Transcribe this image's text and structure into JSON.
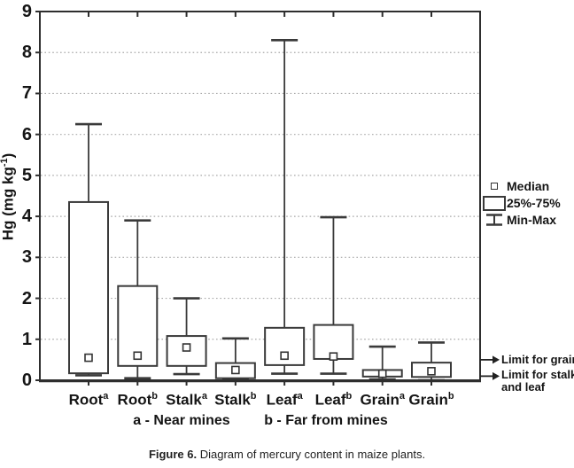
{
  "figure": {
    "caption_prefix": "Figure 6.",
    "caption_text": " Diagram of mercury content in maize plants."
  },
  "chart_data": {
    "type": "box",
    "title": "",
    "xlabel": "",
    "ylabel": "Hg (mg kg-1)",
    "ylabel_parts": {
      "main": "Hg (mg kg",
      "sup": "-1",
      "close": ")"
    },
    "ylim": [
      0,
      9
    ],
    "yticks": [
      0,
      1,
      2,
      3,
      4,
      5,
      6,
      7,
      8,
      9
    ],
    "gridlines": [
      1,
      2,
      3,
      4,
      5,
      6,
      7,
      8
    ],
    "grid_style": "dotted-horizontal",
    "legend_position": "right-outside",
    "categories": [
      "Root a",
      "Root b",
      "Stalk a",
      "Stalk b",
      "Leaf a",
      "Leaf b",
      "Grain a",
      "Grain b"
    ],
    "series": [
      {
        "name": "Root",
        "sup": "a",
        "min": 0.12,
        "q1": 0.17,
        "median": 0.55,
        "q3": 4.35,
        "max": 6.25
      },
      {
        "name": "Root",
        "sup": "b",
        "min": 0.05,
        "q1": 0.35,
        "median": 0.6,
        "q3": 2.3,
        "max": 3.9
      },
      {
        "name": "Stalk",
        "sup": "a",
        "min": 0.15,
        "q1": 0.35,
        "median": 0.8,
        "q3": 1.08,
        "max": 2.0
      },
      {
        "name": "Stalk",
        "sup": "b",
        "min": 0.02,
        "q1": 0.05,
        "median": 0.25,
        "q3": 0.42,
        "max": 1.02
      },
      {
        "name": "Leaf",
        "sup": "a",
        "min": 0.16,
        "q1": 0.37,
        "median": 0.6,
        "q3": 1.28,
        "max": 8.3
      },
      {
        "name": "Leaf",
        "sup": "b",
        "min": 0.16,
        "q1": 0.52,
        "median": 0.58,
        "q3": 1.35,
        "max": 3.98
      },
      {
        "name": "Grain",
        "sup": "a",
        "min": 0.02,
        "q1": 0.09,
        "median": 0.16,
        "q3": 0.25,
        "max": 0.82
      },
      {
        "name": "Grain",
        "sup": "b",
        "min": 0.0,
        "q1": 0.08,
        "median": 0.22,
        "q3": 0.43,
        "max": 0.92
      }
    ],
    "group_notes": [
      "a - Near mines",
      "b - Far from mines"
    ],
    "legend": [
      {
        "glyph": "square-marker",
        "label": "Median"
      },
      {
        "glyph": "box",
        "label": "25%-75%"
      },
      {
        "glyph": "whisker",
        "label": "Min-Max"
      }
    ],
    "annotations": [
      {
        "value": 0.5,
        "label": "Limit for grain"
      },
      {
        "value": 0.1,
        "label": "Limit for stalk and leaf"
      }
    ],
    "colors": {
      "line": "#3a3a3a",
      "axis": "#2e2e2e",
      "grid": "#a9a9a9",
      "background": "#ffffff"
    }
  }
}
